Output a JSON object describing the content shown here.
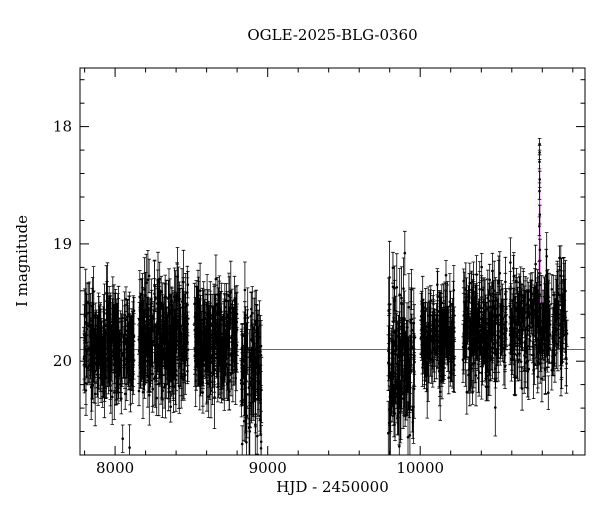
{
  "chart_data": {
    "type": "scatter",
    "title": "OGLE-2025-BLG-0360",
    "xlabel": "HJD - 2450000",
    "ylabel": "I magnitude",
    "xlim": [
      7770,
      11080
    ],
    "ylim": [
      17.5,
      20.8
    ],
    "y_axis_inverted": true,
    "grid": false,
    "legend": "none",
    "point_color": "#000000",
    "model_color": "#ff00ff",
    "x_ticks": {
      "major": [
        8000,
        9000,
        10000
      ],
      "labels": [
        "8000",
        "9000",
        "10000"
      ],
      "minor_step": 200
    },
    "y_ticks": {
      "major": [
        18,
        19,
        20
      ],
      "labels": [
        "18",
        "19",
        "20"
      ],
      "minor_step": 0.2
    },
    "model": {
      "baseline_mag": 19.9,
      "t0": 10782.3,
      "tE": 3.5,
      "u0": 0.24,
      "peak_mag": 18.3
    },
    "seasons": [
      {
        "x_min": 7795,
        "x_max": 8125,
        "n": 300,
        "mag_mean": 19.88,
        "mag_sigma": 0.2,
        "err_min": 0.1,
        "err_max": 0.28
      },
      {
        "x_min": 8155,
        "x_max": 8480,
        "n": 330,
        "mag_mean": 19.78,
        "mag_sigma": 0.22,
        "err_min": 0.1,
        "err_max": 0.28
      },
      {
        "x_min": 8520,
        "x_max": 8800,
        "n": 300,
        "mag_mean": 19.85,
        "mag_sigma": 0.2,
        "err_min": 0.1,
        "err_max": 0.28
      },
      {
        "x_min": 8825,
        "x_max": 8960,
        "n": 110,
        "mag_mean": 20.05,
        "mag_sigma": 0.28,
        "err_min": 0.12,
        "err_max": 0.32
      },
      {
        "x_min": 9790,
        "x_max": 9965,
        "n": 140,
        "mag_mean": 20.0,
        "mag_sigma": 0.3,
        "err_min": 0.12,
        "err_max": 0.32
      },
      {
        "x_min": 10005,
        "x_max": 10225,
        "n": 190,
        "mag_mean": 19.78,
        "mag_sigma": 0.18,
        "err_min": 0.1,
        "err_max": 0.26
      },
      {
        "x_min": 10280,
        "x_max": 10565,
        "n": 240,
        "mag_mean": 19.75,
        "mag_sigma": 0.2,
        "err_min": 0.1,
        "err_max": 0.26
      },
      {
        "x_min": 10585,
        "x_max": 10965,
        "n": 300,
        "mag_mean": 19.7,
        "mag_sigma": 0.2,
        "err_min": 0.1,
        "err_max": 0.26
      }
    ],
    "event_points": [
      [
        10780.5,
        19.25,
        0.1
      ],
      [
        10781.2,
        18.85,
        0.08
      ],
      [
        10781.8,
        18.55,
        0.07
      ],
      [
        10782.0,
        18.3,
        0.06
      ],
      [
        10782.3,
        18.15,
        0.05
      ],
      [
        10782.6,
        18.22,
        0.06
      ],
      [
        10783.0,
        18.45,
        0.07
      ],
      [
        10783.6,
        18.75,
        0.08
      ],
      [
        10784.3,
        19.05,
        0.09
      ],
      [
        10785.0,
        19.35,
        0.1
      ]
    ]
  }
}
